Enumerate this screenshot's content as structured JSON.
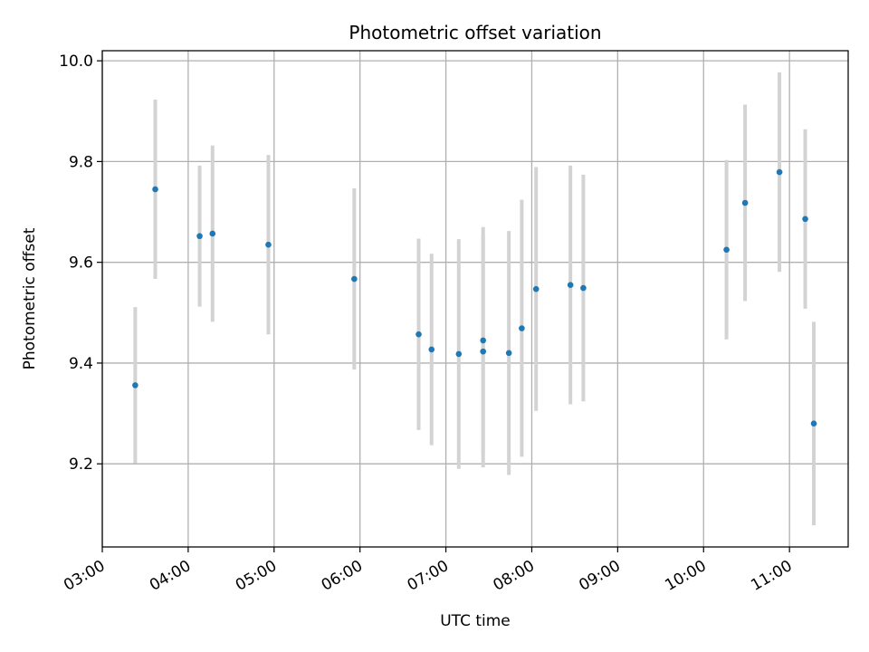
{
  "chart_data": {
    "type": "scatter",
    "title": "Photometric offset variation",
    "xlabel": "UTC time",
    "ylabel": "Photometric offset",
    "x_tick_labels": [
      "03:00",
      "04:00",
      "05:00",
      "06:00",
      "07:00",
      "08:00",
      "09:00",
      "10:00",
      "11:00"
    ],
    "y_tick_labels": [
      "9.2",
      "9.4",
      "9.6",
      "9.8",
      "10.0"
    ],
    "x_ticks": [
      "03:00",
      "04:00",
      "05:00",
      "06:00",
      "07:00",
      "08:00",
      "09:00",
      "10:00",
      "11:00"
    ],
    "y_ticks": [
      9.2,
      9.4,
      9.6,
      9.8,
      10.0
    ],
    "xlim": [
      "03:00",
      "11:41"
    ],
    "ylim": [
      9.035,
      10.02
    ],
    "grid": true,
    "point_color": "#1f77b4",
    "errorbar_color": "#d3d3d3",
    "points": [
      {
        "x": "03:23",
        "y": 9.356,
        "yerr": 0.155
      },
      {
        "x": "03:37",
        "y": 9.745,
        "yerr": 0.178
      },
      {
        "x": "04:08",
        "y": 9.652,
        "yerr": 0.14
      },
      {
        "x": "04:17",
        "y": 9.657,
        "yerr": 0.175
      },
      {
        "x": "04:56",
        "y": 9.635,
        "yerr": 0.178
      },
      {
        "x": "05:56",
        "y": 9.567,
        "yerr": 0.18
      },
      {
        "x": "06:41",
        "y": 9.457,
        "yerr": 0.19
      },
      {
        "x": "06:50",
        "y": 9.427,
        "yerr": 0.19
      },
      {
        "x": "07:09",
        "y": 9.418,
        "yerr": 0.228
      },
      {
        "x": "07:26",
        "y": 9.445,
        "yerr": 0.225
      },
      {
        "x": "07:26",
        "y": 9.423,
        "yerr": 0.23
      },
      {
        "x": "07:44",
        "y": 9.42,
        "yerr": 0.242
      },
      {
        "x": "07:53",
        "y": 9.469,
        "yerr": 0.255
      },
      {
        "x": "08:03",
        "y": 9.547,
        "yerr": 0.242
      },
      {
        "x": "08:27",
        "y": 9.555,
        "yerr": 0.237
      },
      {
        "x": "08:36",
        "y": 9.549,
        "yerr": 0.225
      },
      {
        "x": "10:16",
        "y": 9.625,
        "yerr": 0.178
      },
      {
        "x": "10:29",
        "y": 9.718,
        "yerr": 0.195
      },
      {
        "x": "10:53",
        "y": 9.779,
        "yerr": 0.198
      },
      {
        "x": "11:11",
        "y": 9.686,
        "yerr": 0.178
      },
      {
        "x": "11:17",
        "y": 9.28,
        "yerr": 0.202
      }
    ]
  }
}
